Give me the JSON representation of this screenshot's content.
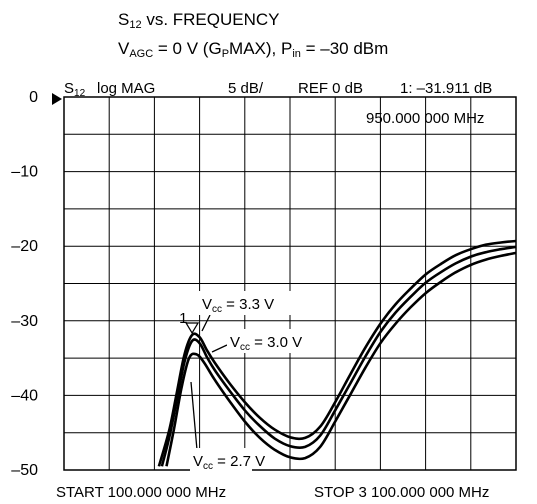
{
  "chart_data": {
    "type": "line",
    "title_line1": "S12 vs. FREQUENCY",
    "title_line2": "VAGC = 0 V (GPMAX), Pin = –30 dBm",
    "header": {
      "param": "S12",
      "format": "log MAG",
      "scale": "5 dB/",
      "ref": "REF 0 dB",
      "marker": "1: –31.911 dB",
      "marker_freq": "950.000 000 MHz"
    },
    "marker_label": "1",
    "x_start_label": "START 100.000 000 MHz",
    "x_stop_label": "STOP 3 100.000 000 MHz",
    "xlim": [
      100,
      3100
    ],
    "ylim": [
      -50,
      0
    ],
    "y_ticks": [
      {
        "value": 0,
        "label": "0"
      },
      {
        "value": -10,
        "label": "–10"
      },
      {
        "value": -20,
        "label": "–20"
      },
      {
        "value": -30,
        "label": "–30"
      },
      {
        "value": -40,
        "label": "–40"
      },
      {
        "value": -50,
        "label": "–50"
      }
    ],
    "x_divisions": 10,
    "y_divisions": 10,
    "series": [
      {
        "name": "Vcc = 3.3 V",
        "x": [
          730,
          800,
          850,
          900,
          950,
          1000,
          1050,
          1100,
          1200,
          1300,
          1400,
          1500,
          1600,
          1700,
          1800,
          1900,
          2000,
          2100,
          2200,
          2300,
          2400,
          2500,
          2600,
          2700,
          2800,
          2900,
          3000,
          3100
        ],
        "y": [
          -49.5,
          -44.5,
          -39.5,
          -34.5,
          -31.9,
          -32.2,
          -34.0,
          -35.6,
          -38.4,
          -40.9,
          -43.0,
          -44.6,
          -45.6,
          -45.7,
          -44.2,
          -40.9,
          -37.2,
          -33.6,
          -30.4,
          -27.8,
          -25.7,
          -23.8,
          -22.4,
          -21.2,
          -20.4,
          -19.8,
          -19.5,
          -19.3
        ]
      },
      {
        "name": "Vcc = 3.0 V",
        "x": [
          750,
          800,
          850,
          900,
          950,
          1000,
          1050,
          1100,
          1200,
          1300,
          1400,
          1500,
          1600,
          1700,
          1800,
          1900,
          2000,
          2100,
          2200,
          2300,
          2400,
          2500,
          2600,
          2700,
          2800,
          2900,
          3000,
          3100
        ],
        "y": [
          -49.5,
          -45.5,
          -40.5,
          -35.5,
          -32.7,
          -33.0,
          -34.9,
          -36.6,
          -39.4,
          -42.0,
          -44.1,
          -45.8,
          -46.8,
          -46.9,
          -45.4,
          -42.0,
          -38.4,
          -34.8,
          -31.5,
          -28.9,
          -26.8,
          -24.9,
          -23.5,
          -22.3,
          -21.4,
          -20.8,
          -20.4,
          -20.1
        ]
      },
      {
        "name": "Vcc = 2.7 V",
        "x": [
          780,
          830,
          880,
          930,
          980,
          1030,
          1100,
          1200,
          1300,
          1400,
          1500,
          1600,
          1700,
          1800,
          1900,
          2000,
          2100,
          2200,
          2300,
          2400,
          2500,
          2600,
          2700,
          2800,
          2900,
          3000,
          3100
        ],
        "y": [
          -49.5,
          -44.5,
          -39.0,
          -35.0,
          -34.5,
          -35.6,
          -37.9,
          -40.8,
          -43.5,
          -45.7,
          -47.3,
          -48.3,
          -48.4,
          -46.9,
          -43.5,
          -39.9,
          -36.3,
          -33.0,
          -30.4,
          -28.2,
          -26.3,
          -24.8,
          -23.5,
          -22.5,
          -21.8,
          -21.3,
          -20.9
        ]
      }
    ],
    "annotations": [
      {
        "text": "Vcc = 3.3 V"
      },
      {
        "text": "Vcc = 3.0 V"
      },
      {
        "text": "Vcc = 2.7 V"
      }
    ],
    "grid": true
  }
}
